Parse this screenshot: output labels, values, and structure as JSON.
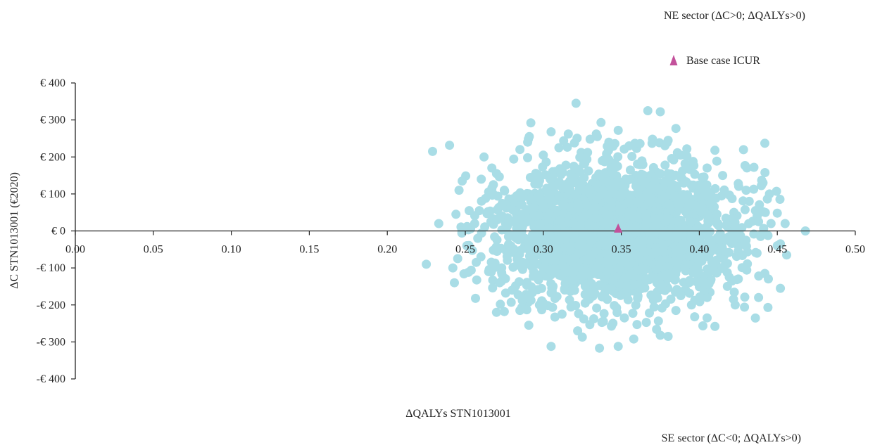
{
  "chart_data": {
    "type": "scatter",
    "sectors": {
      "ne": "NE sector (ΔC>0; ΔQALYs>0)",
      "se": "SE sector (ΔC<0; ΔQALYs>0)"
    },
    "xlabel": "ΔQALYs STN1013001",
    "ylabel": "ΔC STN1013001 (€2020)",
    "xlim": [
      0,
      0.5
    ],
    "ylim": [
      -400,
      400
    ],
    "x_ticks": [
      0.0,
      0.05,
      0.1,
      0.15,
      0.2,
      0.25,
      0.3,
      0.35,
      0.4,
      0.45,
      0.5
    ],
    "x_tick_labels": [
      "0.00",
      "0.05",
      "0.10",
      "0.15",
      "0.20",
      "0.25",
      "0.30",
      "0.35",
      "0.40",
      "0.45",
      "0.50"
    ],
    "y_ticks": [
      400,
      300,
      200,
      100,
      0,
      -100,
      -200,
      -300,
      -400
    ],
    "y_tick_labels": [
      "€ 400",
      "€ 300",
      "€ 200",
      "€ 100",
      "€ 0",
      "-€ 100",
      "-€ 200",
      "-€ 300",
      "-€ 400"
    ],
    "grid": false,
    "legend_position": "top-right",
    "series": [
      {
        "name": "Base case ICUR",
        "marker": "triangle",
        "color": "#c3519b",
        "points": [
          {
            "x": 0.348,
            "y": 5
          }
        ]
      }
    ],
    "simulations": {
      "marker": "circle",
      "color": "#a9dde6",
      "points": [
        {
          "x": 0.229,
          "y": 215
        },
        {
          "x": 0.233,
          "y": 20
        },
        {
          "x": 0.225,
          "y": -90
        },
        {
          "x": 0.242,
          "y": -100
        },
        {
          "x": 0.243,
          "y": -140
        },
        {
          "x": 0.244,
          "y": 45
        },
        {
          "x": 0.246,
          "y": 110
        },
        {
          "x": 0.248,
          "y": 135
        },
        {
          "x": 0.262,
          "y": 200
        },
        {
          "x": 0.267,
          "y": 170
        },
        {
          "x": 0.27,
          "y": 155
        },
        {
          "x": 0.285,
          "y": 220
        },
        {
          "x": 0.29,
          "y": 240
        },
        {
          "x": 0.291,
          "y": 255
        },
        {
          "x": 0.292,
          "y": 292
        },
        {
          "x": 0.305,
          "y": 268
        },
        {
          "x": 0.316,
          "y": 262
        },
        {
          "x": 0.321,
          "y": 345
        },
        {
          "x": 0.334,
          "y": 262
        },
        {
          "x": 0.337,
          "y": 293
        },
        {
          "x": 0.348,
          "y": 272
        },
        {
          "x": 0.367,
          "y": 325
        },
        {
          "x": 0.375,
          "y": 322
        },
        {
          "x": 0.385,
          "y": 277
        },
        {
          "x": 0.38,
          "y": 245
        },
        {
          "x": 0.392,
          "y": 222
        },
        {
          "x": 0.41,
          "y": 218
        },
        {
          "x": 0.442,
          "y": 237
        },
        {
          "x": 0.435,
          "y": 172
        },
        {
          "x": 0.44,
          "y": 137
        },
        {
          "x": 0.445,
          "y": 100
        },
        {
          "x": 0.45,
          "y": 48
        },
        {
          "x": 0.455,
          "y": 20
        },
        {
          "x": 0.468,
          "y": 0
        },
        {
          "x": 0.452,
          "y": -35
        },
        {
          "x": 0.456,
          "y": -65
        },
        {
          "x": 0.45,
          "y": -40
        },
        {
          "x": 0.442,
          "y": -115
        },
        {
          "x": 0.452,
          "y": -155
        },
        {
          "x": 0.438,
          "y": -180
        },
        {
          "x": 0.444,
          "y": -207
        },
        {
          "x": 0.423,
          "y": -200
        },
        {
          "x": 0.41,
          "y": -258
        },
        {
          "x": 0.405,
          "y": -235
        },
        {
          "x": 0.397,
          "y": -232
        },
        {
          "x": 0.38,
          "y": -285
        },
        {
          "x": 0.375,
          "y": -282
        },
        {
          "x": 0.358,
          "y": -292
        },
        {
          "x": 0.348,
          "y": -312
        },
        {
          "x": 0.336,
          "y": -317
        },
        {
          "x": 0.322,
          "y": -270
        },
        {
          "x": 0.325,
          "y": -287
        },
        {
          "x": 0.305,
          "y": -312
        },
        {
          "x": 0.299,
          "y": -213
        },
        {
          "x": 0.285,
          "y": -215
        },
        {
          "x": 0.275,
          "y": -218
        },
        {
          "x": 0.27,
          "y": -220
        },
        {
          "x": 0.252,
          "y": -112
        },
        {
          "x": 0.257,
          "y": -85
        },
        {
          "x": 0.251,
          "y": -40
        },
        {
          "x": 0.263,
          "y": 88
        },
        {
          "x": 0.268,
          "y": 125
        },
        {
          "x": 0.275,
          "y": 110
        },
        {
          "x": 0.283,
          "y": 95
        },
        {
          "x": 0.3,
          "y": 205
        },
        {
          "x": 0.31,
          "y": 225
        },
        {
          "x": 0.32,
          "y": 238
        },
        {
          "x": 0.33,
          "y": 248
        },
        {
          "x": 0.342,
          "y": 240
        },
        {
          "x": 0.355,
          "y": 230
        },
        {
          "x": 0.362,
          "y": 236
        },
        {
          "x": 0.37,
          "y": 248
        },
        {
          "x": 0.388,
          "y": 205
        },
        {
          "x": 0.396,
          "y": 188
        },
        {
          "x": 0.405,
          "y": 170
        },
        {
          "x": 0.415,
          "y": 150
        },
        {
          "x": 0.425,
          "y": 128
        },
        {
          "x": 0.43,
          "y": 110
        },
        {
          "x": 0.432,
          "y": 80
        },
        {
          "x": 0.436,
          "y": 55
        },
        {
          "x": 0.438,
          "y": 25
        },
        {
          "x": 0.44,
          "y": -10
        },
        {
          "x": 0.437,
          "y": -60
        },
        {
          "x": 0.43,
          "y": -100
        },
        {
          "x": 0.425,
          "y": -130
        },
        {
          "x": 0.418,
          "y": -150
        },
        {
          "x": 0.405,
          "y": -180
        },
        {
          "x": 0.395,
          "y": -200
        },
        {
          "x": 0.385,
          "y": -215
        },
        {
          "x": 0.368,
          "y": -222
        },
        {
          "x": 0.352,
          "y": -235
        },
        {
          "x": 0.338,
          "y": -245
        },
        {
          "x": 0.326,
          "y": -238
        },
        {
          "x": 0.312,
          "y": -225
        },
        {
          "x": 0.3,
          "y": -195
        },
        {
          "x": 0.29,
          "y": -180
        },
        {
          "x": 0.28,
          "y": -160
        },
        {
          "x": 0.272,
          "y": -140
        },
        {
          "x": 0.265,
          "y": -110
        },
        {
          "x": 0.26,
          "y": -70
        },
        {
          "x": 0.258,
          "y": -20
        },
        {
          "x": 0.256,
          "y": 20
        },
        {
          "x": 0.259,
          "y": 55
        }
      ]
    }
  }
}
